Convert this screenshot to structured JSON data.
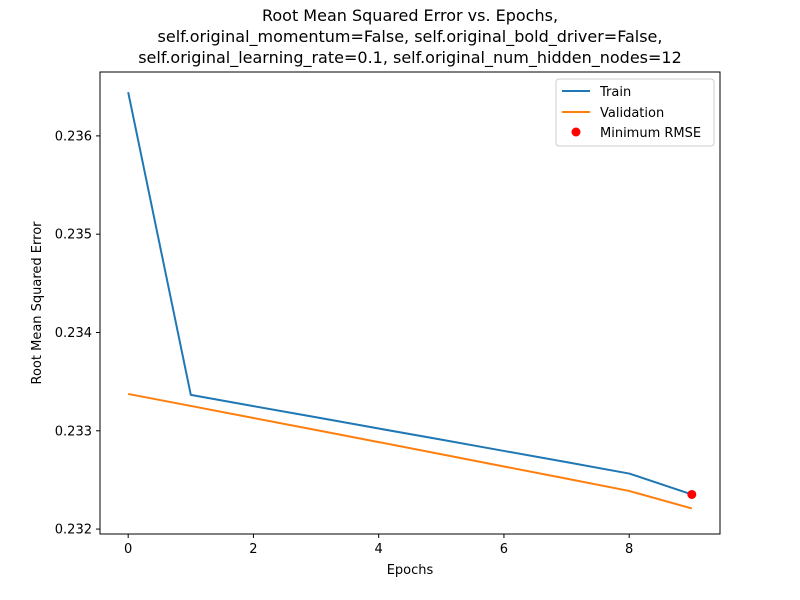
{
  "chart_data": {
    "type": "line",
    "title_lines": [
      "Root Mean Squared Error vs. Epochs,",
      "self.original_momentum=False, self.original_bold_driver=False,",
      "self.original_learning_rate=0.1, self.original_num_hidden_nodes=12"
    ],
    "xlabel": "Epochs",
    "ylabel": "Root Mean Squared Error",
    "xlim": [
      -0.45,
      9.45
    ],
    "ylim": [
      0.23195,
      0.23665
    ],
    "xticks": [
      0,
      2,
      4,
      6,
      8
    ],
    "yticks": [
      0.232,
      0.233,
      0.234,
      0.235,
      0.236
    ],
    "ytick_labels": [
      "0.232",
      "0.233",
      "0.234",
      "0.235",
      "0.236"
    ],
    "x": [
      0,
      1,
      2,
      3,
      4,
      5,
      6,
      7,
      8,
      9
    ],
    "series": [
      {
        "name": "Train",
        "color": "#1f77b4",
        "values": [
          0.236445,
          0.233365,
          0.233251,
          0.233138,
          0.233023,
          0.23291,
          0.232795,
          0.232681,
          0.232565,
          0.232352
        ]
      },
      {
        "name": "Validation",
        "color": "#ff7f0e",
        "values": [
          0.233375,
          0.233253,
          0.23313,
          0.233008,
          0.232885,
          0.232761,
          0.232637,
          0.232513,
          0.232388,
          0.23221
        ]
      }
    ],
    "minimum": {
      "name": "Minimum RMSE",
      "color": "#ff0000",
      "x": 9,
      "y": 0.232352
    },
    "legend_location": "upper right",
    "grid": false
  }
}
